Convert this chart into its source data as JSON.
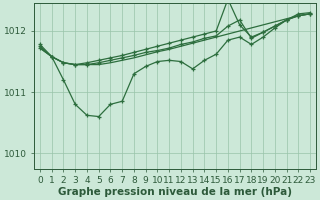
{
  "xlabel": "Graphe pression niveau de la mer (hPa)",
  "bg_color": "#cce8d8",
  "grid_color": "#99c4aa",
  "line_color": "#2d6e3e",
  "marker_color": "#2d6e3e",
  "ylim": [
    1009.75,
    1012.45
  ],
  "yticks": [
    1010,
    1011,
    1012
  ],
  "xlim": [
    -0.5,
    23.5
  ],
  "xlabel_fontsize": 7.5,
  "tick_fontsize": 6.5,
  "axis_color": "#2d5a3a",
  "line1": [
    1011.72,
    1011.58,
    1011.48,
    1011.45,
    1011.45,
    1011.45,
    1011.48,
    1011.52,
    1011.56,
    1011.61,
    1011.66,
    1011.7,
    1011.75,
    1011.8,
    1011.85,
    1011.9,
    1011.95,
    1012.0,
    1012.05,
    1012.1,
    1012.15,
    1012.2,
    1012.25,
    1012.28
  ],
  "line2_x": [
    0,
    1,
    2,
    3,
    4,
    5,
    6,
    7,
    8,
    9,
    10,
    11,
    12,
    13,
    14,
    15,
    16,
    17,
    18,
    19,
    20,
    21,
    22,
    23
  ],
  "line2_y": [
    1011.72,
    1011.58,
    1011.2,
    1010.8,
    1010.62,
    1010.6,
    1010.8,
    1010.85,
    1011.3,
    1011.42,
    1011.5,
    1011.52,
    1011.5,
    1011.38,
    1011.52,
    1011.62,
    1011.85,
    1011.9,
    1011.78,
    1011.9,
    1012.05,
    1012.18,
    1012.28,
    1012.3
  ],
  "line3": [
    1011.75,
    1011.58,
    1011.48,
    1011.45,
    1011.45,
    1011.48,
    1011.52,
    1011.56,
    1011.6,
    1011.65,
    1011.68,
    1011.72,
    1011.78,
    1011.82,
    1011.88,
    1011.92,
    1012.08,
    1012.18,
    1011.88,
    1011.98,
    1012.08,
    1012.18,
    1012.25,
    1012.28
  ],
  "line4": [
    1011.78,
    1011.58,
    1011.48,
    1011.45,
    1011.48,
    1011.52,
    1011.56,
    1011.6,
    1011.65,
    1011.7,
    1011.75,
    1011.8,
    1011.85,
    1011.9,
    1011.95,
    1012.0,
    1012.52,
    1012.1,
    1011.9,
    1011.98,
    1012.08,
    1012.18,
    1012.25,
    1012.28
  ]
}
